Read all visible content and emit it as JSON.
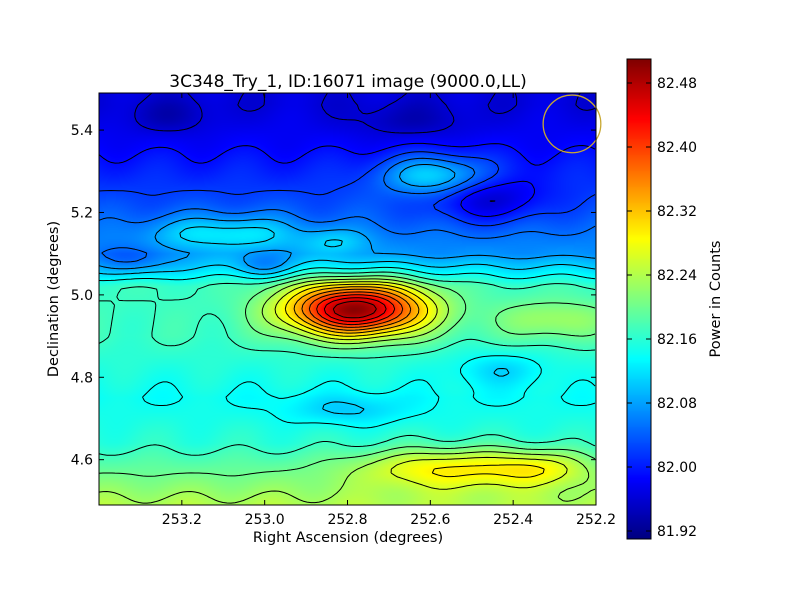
{
  "chart_data": {
    "type": "heatmap",
    "title": "3C348_Try_1, ID:16071 image (9000.0,LL)",
    "xlabel": "Right Ascension (degrees)",
    "ylabel": "Declination (degrees)",
    "colorbar_label": "Power in Counts",
    "colormap": "jet",
    "contours": true,
    "x_inverted": true,
    "xlim": [
      253.4,
      252.2
    ],
    "ylim": [
      4.49,
      5.49
    ],
    "xticks": [
      253.2,
      253.0,
      252.8,
      252.6,
      252.4,
      252.2
    ],
    "xtick_labels": [
      "253.2",
      "253.0",
      "252.8",
      "252.6",
      "252.4",
      "252.2"
    ],
    "yticks": [
      4.6,
      4.8,
      5.0,
      5.2,
      5.4
    ],
    "ytick_labels": [
      "4.6",
      "4.8",
      "5.0",
      "5.2",
      "5.4"
    ],
    "clim": [
      81.91,
      82.51
    ],
    "cticks": [
      81.92,
      82.0,
      82.08,
      82.16,
      82.24,
      82.32,
      82.4,
      82.48
    ],
    "ctick_labels": [
      "81.92",
      "82.00",
      "82.08",
      "82.16",
      "82.24",
      "82.32",
      "82.40",
      "82.48"
    ],
    "baseline_bands": [
      {
        "dec": 5.46,
        "value": 81.965
      },
      {
        "dec": 5.36,
        "value": 81.985
      },
      {
        "dec": 5.25,
        "value": 82.02
      },
      {
        "dec": 5.1,
        "value": 82.07
      },
      {
        "dec": 5.02,
        "value": 82.17
      },
      {
        "dec": 4.9,
        "value": 82.17
      },
      {
        "dec": 4.75,
        "value": 82.14
      },
      {
        "dec": 4.64,
        "value": 82.16
      },
      {
        "dec": 4.49,
        "value": 82.24
      }
    ],
    "features": [
      {
        "ra": 252.78,
        "dec": 4.965,
        "amplitude": 0.33,
        "sigma_ra": 0.12,
        "sigma_dec": 0.045
      },
      {
        "ra": 252.55,
        "dec": 4.58,
        "amplitude": 0.1,
        "sigma_ra": 0.16,
        "sigma_dec": 0.035
      },
      {
        "ra": 252.33,
        "dec": 4.58,
        "amplitude": 0.06,
        "sigma_ra": 0.08,
        "sigma_dec": 0.03
      },
      {
        "ra": 252.3,
        "dec": 4.94,
        "amplitude": 0.06,
        "sigma_ra": 0.1,
        "sigma_dec": 0.035
      },
      {
        "ra": 252.59,
        "dec": 5.29,
        "amplitude": 0.11,
        "sigma_ra": 0.09,
        "sigma_dec": 0.035
      },
      {
        "ra": 253.18,
        "dec": 5.15,
        "amplitude": 0.05,
        "sigma_ra": 0.08,
        "sigma_dec": 0.03
      },
      {
        "ra": 253.03,
        "dec": 5.15,
        "amplitude": 0.06,
        "sigma_ra": 0.08,
        "sigma_dec": 0.03
      },
      {
        "ra": 252.83,
        "dec": 5.13,
        "amplitude": 0.05,
        "sigma_ra": 0.06,
        "sigma_dec": 0.025
      },
      {
        "ra": 252.46,
        "dec": 5.23,
        "amplitude": -0.07,
        "sigma_ra": 0.1,
        "sigma_dec": 0.04
      },
      {
        "ra": 253.32,
        "dec": 5.08,
        "amplitude": -0.05,
        "sigma_ra": 0.06,
        "sigma_dec": 0.025
      },
      {
        "ra": 253.0,
        "dec": 5.07,
        "amplitude": -0.04,
        "sigma_ra": 0.05,
        "sigma_dec": 0.02
      },
      {
        "ra": 252.8,
        "dec": 4.72,
        "amplitude": -0.04,
        "sigma_ra": 0.1,
        "sigma_dec": 0.025
      },
      {
        "ra": 253.23,
        "dec": 5.43,
        "amplitude": -0.03,
        "sigma_ra": 0.07,
        "sigma_dec": 0.03
      },
      {
        "ra": 252.65,
        "dec": 5.42,
        "amplitude": -0.03,
        "sigma_ra": 0.1,
        "sigma_dec": 0.03
      },
      {
        "ra": 252.43,
        "dec": 4.82,
        "amplitude": -0.04,
        "sigma_ra": 0.08,
        "sigma_dec": 0.03
      }
    ],
    "contour_levels": [
      81.96,
      81.99,
      82.02,
      82.05,
      82.08,
      82.11,
      82.14,
      82.17,
      82.2,
      82.23,
      82.26,
      82.29,
      82.32,
      82.35,
      82.38,
      82.41,
      82.44,
      82.47
    ],
    "beam_circle": {
      "ra": 252.258,
      "dec": 5.415,
      "radius_dec": 0.07,
      "color": "#c8a832"
    }
  }
}
